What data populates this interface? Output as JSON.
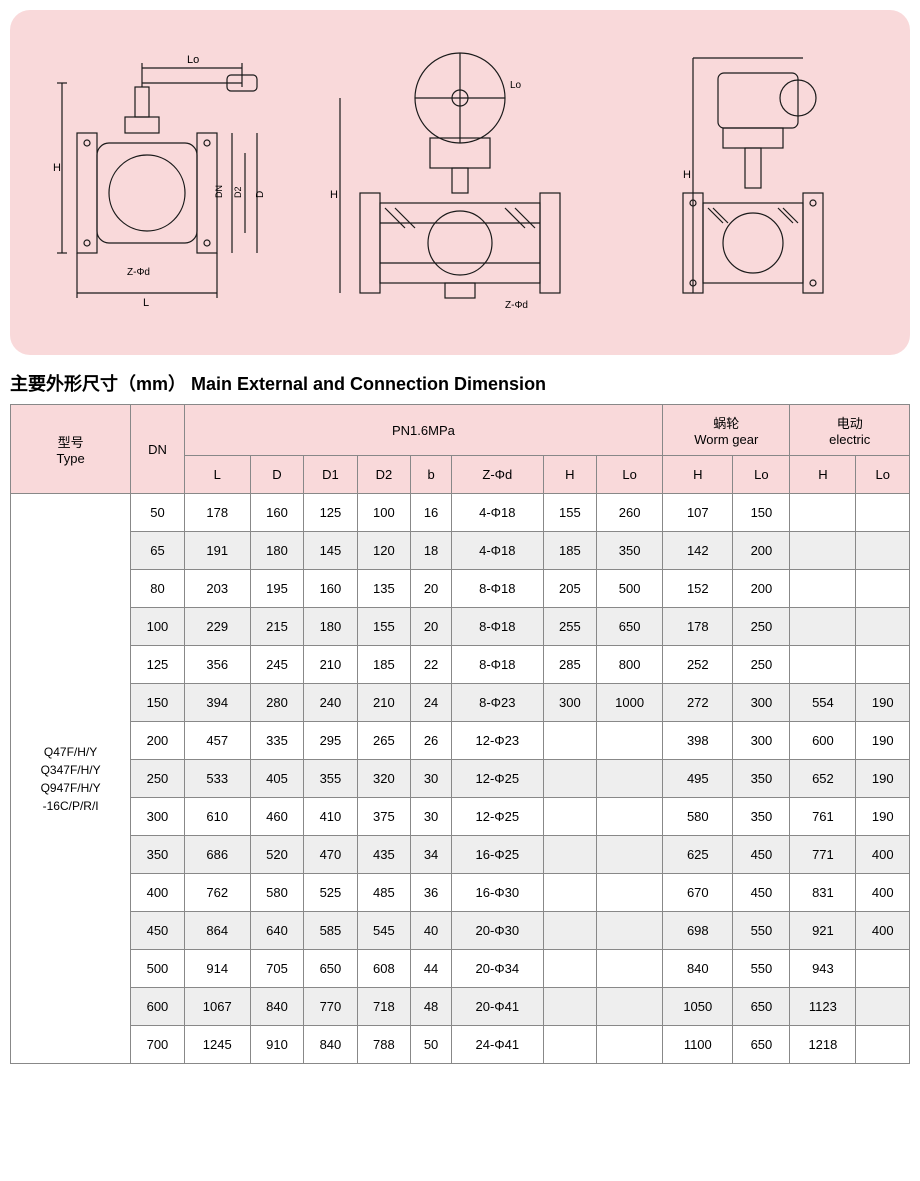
{
  "diagram": {
    "background": "#f9d9da",
    "labels": [
      "Lo",
      "H",
      "DN",
      "D2",
      "D",
      "L",
      "Z-Φd"
    ]
  },
  "title": "主要外形尺寸（mm） Main External and Connection Dimension",
  "table": {
    "header_bg": "#f9d9da",
    "row_bg_odd": "#ffffff",
    "row_bg_even": "#eeeeee",
    "groups": [
      {
        "label_cn": "型号",
        "label_en": "Type",
        "colspan": 1,
        "rowspan": 2
      },
      {
        "label": "DN",
        "colspan": 1,
        "rowspan": 2
      },
      {
        "label": "PN1.6MPa",
        "colspan": 8
      },
      {
        "label_cn": "蜗轮",
        "label_en": "Worm gear",
        "colspan": 2
      },
      {
        "label_cn": "电动",
        "label_en": "electric",
        "colspan": 2
      }
    ],
    "sub_headers": [
      "L",
      "D",
      "D1",
      "D2",
      "b",
      "Z-Φd",
      "H",
      "Lo",
      "H",
      "Lo",
      "H",
      "Lo"
    ],
    "type_label": [
      "Q47F/H/Y",
      "Q347F/H/Y",
      "Q947F/H/Y",
      "-16C/P/R/I"
    ],
    "rows": [
      {
        "dn": "50",
        "L": "178",
        "D": "160",
        "D1": "125",
        "D2": "100",
        "b": "16",
        "Zd": "4-Φ18",
        "H": "155",
        "Lo": "260",
        "wH": "107",
        "wLo": "150",
        "eH": "",
        "eLo": ""
      },
      {
        "dn": "65",
        "L": "191",
        "D": "180",
        "D1": "145",
        "D2": "120",
        "b": "18",
        "Zd": "4-Φ18",
        "H": "185",
        "Lo": "350",
        "wH": "142",
        "wLo": "200",
        "eH": "",
        "eLo": ""
      },
      {
        "dn": "80",
        "L": "203",
        "D": "195",
        "D1": "160",
        "D2": "135",
        "b": "20",
        "Zd": "8-Φ18",
        "H": "205",
        "Lo": "500",
        "wH": "152",
        "wLo": "200",
        "eH": "",
        "eLo": ""
      },
      {
        "dn": "100",
        "L": "229",
        "D": "215",
        "D1": "180",
        "D2": "155",
        "b": "20",
        "Zd": "8-Φ18",
        "H": "255",
        "Lo": "650",
        "wH": "178",
        "wLo": "250",
        "eH": "",
        "eLo": ""
      },
      {
        "dn": "125",
        "L": "356",
        "D": "245",
        "D1": "210",
        "D2": "185",
        "b": "22",
        "Zd": "8-Φ18",
        "H": "285",
        "Lo": "800",
        "wH": "252",
        "wLo": "250",
        "eH": "",
        "eLo": ""
      },
      {
        "dn": "150",
        "L": "394",
        "D": "280",
        "D1": "240",
        "D2": "210",
        "b": "24",
        "Zd": "8-Φ23",
        "H": "300",
        "Lo": "1000",
        "wH": "272",
        "wLo": "300",
        "eH": "554",
        "eLo": "190"
      },
      {
        "dn": "200",
        "L": "457",
        "D": "335",
        "D1": "295",
        "D2": "265",
        "b": "26",
        "Zd": "12-Φ23",
        "H": "",
        "Lo": "",
        "wH": "398",
        "wLo": "300",
        "eH": "600",
        "eLo": "190"
      },
      {
        "dn": "250",
        "L": "533",
        "D": "405",
        "D1": "355",
        "D2": "320",
        "b": "30",
        "Zd": "12-Φ25",
        "H": "",
        "Lo": "",
        "wH": "495",
        "wLo": "350",
        "eH": "652",
        "eLo": "190"
      },
      {
        "dn": "300",
        "L": "610",
        "D": "460",
        "D1": "410",
        "D2": "375",
        "b": "30",
        "Zd": "12-Φ25",
        "H": "",
        "Lo": "",
        "wH": "580",
        "wLo": "350",
        "eH": "761",
        "eLo": "190"
      },
      {
        "dn": "350",
        "L": "686",
        "D": "520",
        "D1": "470",
        "D2": "435",
        "b": "34",
        "Zd": "16-Φ25",
        "H": "",
        "Lo": "",
        "wH": "625",
        "wLo": "450",
        "eH": "771",
        "eLo": "400"
      },
      {
        "dn": "400",
        "L": "762",
        "D": "580",
        "D1": "525",
        "D2": "485",
        "b": "36",
        "Zd": "16-Φ30",
        "H": "",
        "Lo": "",
        "wH": "670",
        "wLo": "450",
        "eH": "831",
        "eLo": "400"
      },
      {
        "dn": "450",
        "L": "864",
        "D": "640",
        "D1": "585",
        "D2": "545",
        "b": "40",
        "Zd": "20-Φ30",
        "H": "",
        "Lo": "",
        "wH": "698",
        "wLo": "550",
        "eH": "921",
        "eLo": "400"
      },
      {
        "dn": "500",
        "L": "914",
        "D": "705",
        "D1": "650",
        "D2": "608",
        "b": "44",
        "Zd": "20-Φ34",
        "H": "",
        "Lo": "",
        "wH": "840",
        "wLo": "550",
        "eH": "943",
        "eLo": ""
      },
      {
        "dn": "600",
        "L": "1067",
        "D": "840",
        "D1": "770",
        "D2": "718",
        "b": "48",
        "Zd": "20-Φ41",
        "H": "",
        "Lo": "",
        "wH": "1050",
        "wLo": "650",
        "eH": "1123",
        "eLo": ""
      },
      {
        "dn": "700",
        "L": "1245",
        "D": "910",
        "D1": "840",
        "D2": "788",
        "b": "50",
        "Zd": "24-Φ41",
        "H": "",
        "Lo": "",
        "wH": "1100",
        "wLo": "650",
        "eH": "1218",
        "eLo": ""
      }
    ]
  }
}
